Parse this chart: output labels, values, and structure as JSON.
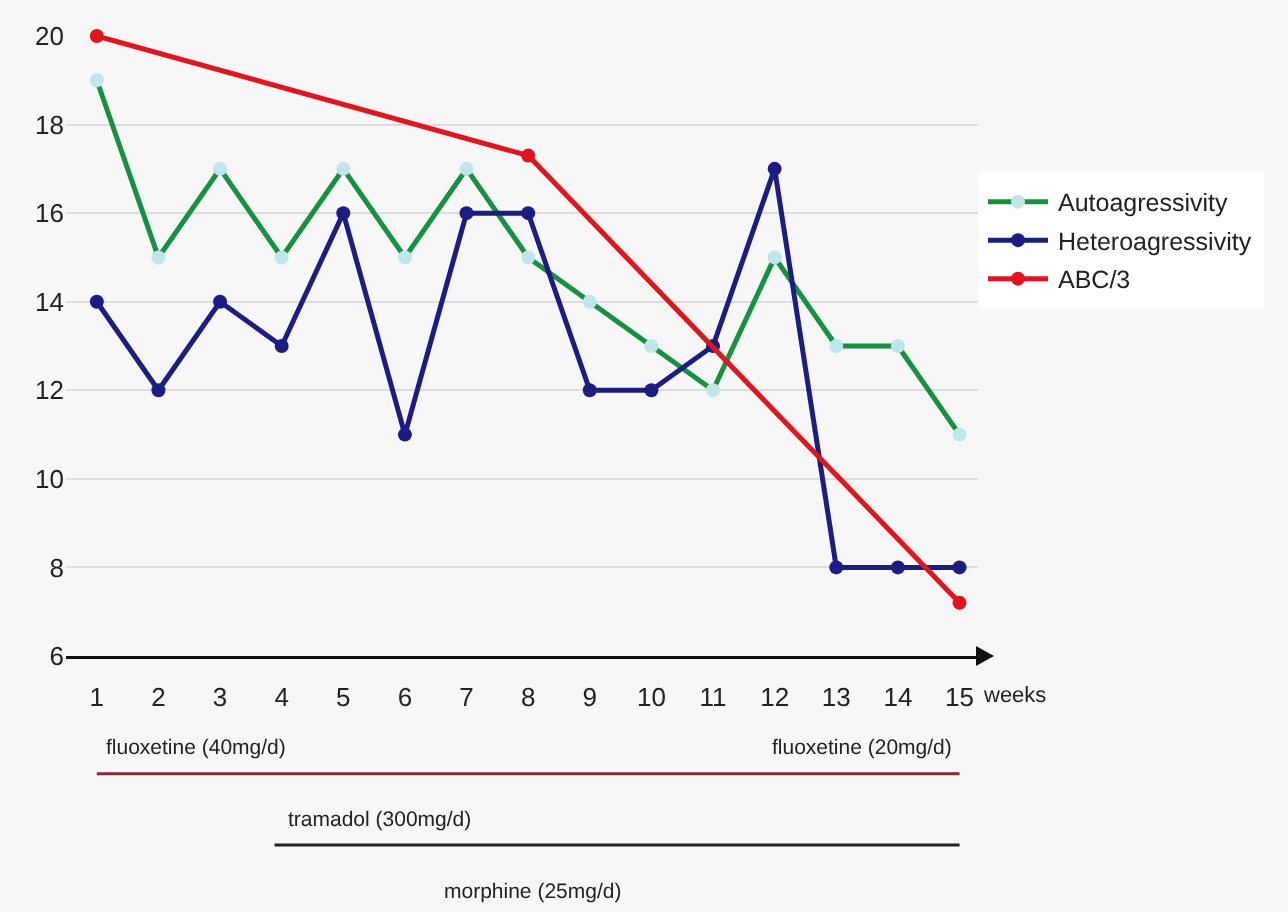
{
  "chart_data": {
    "type": "line",
    "x": [
      1,
      2,
      3,
      4,
      5,
      6,
      7,
      8,
      9,
      10,
      11,
      12,
      13,
      14,
      15
    ],
    "xlabel": "weeks",
    "series": [
      {
        "name": "Autoagressivity",
        "color": "#139240",
        "values": [
          19,
          15,
          17,
          15,
          17,
          15,
          17,
          15,
          14,
          13,
          12,
          15,
          13,
          13,
          11
        ]
      },
      {
        "name": "Heteroagressivity",
        "color": "#1c1c85",
        "values": [
          14,
          12,
          14,
          13,
          16,
          11,
          16,
          16,
          12,
          12,
          13,
          17,
          8,
          8,
          8
        ]
      },
      {
        "name": "ABC/3",
        "color": "#e5131b",
        "x": [
          1,
          8,
          15
        ],
        "values": [
          20,
          17.3,
          7.2
        ]
      }
    ],
    "xlim": [
      0.5,
      15.3
    ],
    "ylim": [
      6,
      20
    ],
    "xticks": [
      1,
      2,
      3,
      4,
      5,
      6,
      7,
      8,
      9,
      10,
      11,
      12,
      13,
      14,
      15
    ],
    "yticks": [
      6,
      8,
      10,
      12,
      14,
      16,
      18,
      20
    ],
    "grid": "y",
    "legend": "right",
    "marker": "circle",
    "annotations": [
      "fluoxetine (40mg/d)",
      "fluoxetine (20mg/d)",
      "tramadol (300mg/d)",
      "morphine (25mg/d)"
    ]
  }
}
